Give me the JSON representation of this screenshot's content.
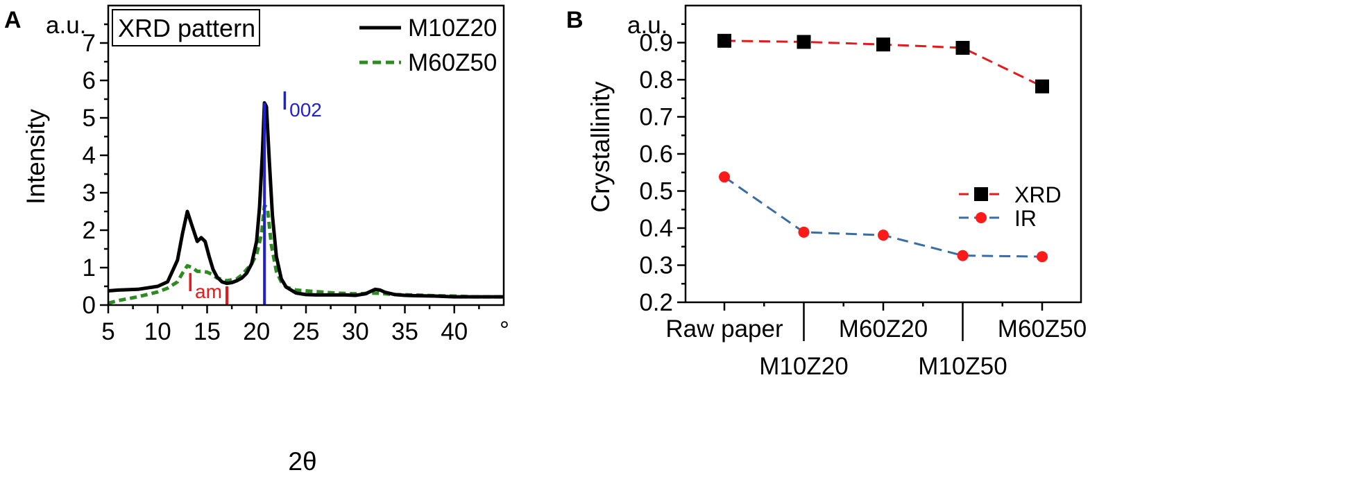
{
  "chart_data": [
    {
      "panel_label": "A",
      "type": "line",
      "title": "XRD pattern",
      "xlabel": "2θ",
      "ylabel": "Intensity",
      "y_unit": "a.u.",
      "x_unit": "°",
      "xlim": [
        5,
        45
      ],
      "ylim": [
        0,
        8
      ],
      "xticks": [
        "5",
        "10",
        "15",
        "20",
        "25",
        "30",
        "35",
        "40"
      ],
      "yticks": [
        "0",
        "1",
        "2",
        "3",
        "4",
        "5",
        "6",
        "7"
      ],
      "legend_position": "top-right",
      "series": [
        {
          "name": "M10Z20",
          "color": "#000000",
          "style": "solid",
          "x": [
            5,
            6,
            8,
            10,
            11,
            12,
            12.5,
            13,
            13.5,
            14,
            14.4,
            14.8,
            15.2,
            15.6,
            16,
            16.5,
            17,
            17.5,
            18,
            18.5,
            19,
            19.5,
            20,
            20.3,
            20.6,
            20.8,
            21.0,
            21.3,
            21.6,
            22,
            22.5,
            23,
            24,
            25,
            26,
            28,
            29,
            30,
            31,
            32,
            32.5,
            33,
            34,
            35,
            36,
            38,
            40,
            42,
            45
          ],
          "y": [
            0.38,
            0.4,
            0.42,
            0.5,
            0.62,
            1.2,
            1.9,
            2.5,
            2.1,
            1.7,
            1.8,
            1.7,
            1.3,
            0.95,
            0.75,
            0.62,
            0.58,
            0.6,
            0.65,
            0.72,
            0.85,
            1.1,
            1.7,
            2.6,
            4.1,
            5.4,
            5.3,
            3.8,
            2.4,
            1.3,
            0.7,
            0.48,
            0.32,
            0.28,
            0.27,
            0.27,
            0.27,
            0.26,
            0.3,
            0.42,
            0.4,
            0.34,
            0.28,
            0.26,
            0.25,
            0.24,
            0.22,
            0.22,
            0.22
          ]
        },
        {
          "name": "M60Z50",
          "color": "#2e8b22",
          "style": "dashed",
          "x": [
            5,
            6,
            8,
            10,
            11,
            12,
            12.5,
            13,
            13.5,
            14,
            14.5,
            15,
            15.5,
            16,
            17,
            18,
            18.5,
            19,
            19.5,
            20,
            20.5,
            20.8,
            21.1,
            21.5,
            22,
            22.5,
            23,
            24,
            25,
            26,
            28,
            30,
            32,
            33,
            34,
            36,
            38,
            40,
            42,
            45
          ],
          "y": [
            0.05,
            0.12,
            0.22,
            0.35,
            0.45,
            0.62,
            0.85,
            1.05,
            1.0,
            0.9,
            0.9,
            0.88,
            0.82,
            0.72,
            0.65,
            0.7,
            0.8,
            0.95,
            1.1,
            1.35,
            1.9,
            2.65,
            2.6,
            1.6,
            0.9,
            0.62,
            0.48,
            0.4,
            0.38,
            0.36,
            0.32,
            0.3,
            0.32,
            0.3,
            0.28,
            0.27,
            0.25,
            0.24,
            0.22,
            0.22
          ]
        }
      ],
      "annotations": [
        {
          "label": "I",
          "subscript": "002",
          "color": "#1f1fd6",
          "x": 20.8,
          "y_bottom": 0,
          "y_top": 5.4
        },
        {
          "label": "I",
          "subscript": "am",
          "color": "#e41a1c",
          "x": 17.0,
          "y_bottom": 0,
          "y_top": 0.5
        }
      ]
    },
    {
      "panel_label": "B",
      "type": "line",
      "title": "",
      "xlabel": "",
      "ylabel": "Crystallinity",
      "y_unit": "a.u.",
      "ylim": [
        0.2,
        1.0
      ],
      "yticks": [
        "0.2",
        "0.3",
        "0.4",
        "0.5",
        "0.6",
        "0.7",
        "0.8",
        "0.9"
      ],
      "categories": [
        "Raw paper",
        "M10Z20",
        "M60Z20",
        "M10Z50",
        "M60Z50"
      ],
      "legend_position": "right",
      "series": [
        {
          "name": "XRD",
          "color": "#e41a1c",
          "marker_color": "#000000",
          "marker": "square",
          "style": "dashed",
          "values": [
            0.905,
            0.902,
            0.895,
            0.886,
            0.782
          ]
        },
        {
          "name": "IR",
          "color": "#3a6da3",
          "marker_color": "#ff1a1a",
          "marker": "circle",
          "style": "dashed",
          "values": [
            0.538,
            0.389,
            0.381,
            0.326,
            0.323
          ]
        }
      ]
    }
  ]
}
